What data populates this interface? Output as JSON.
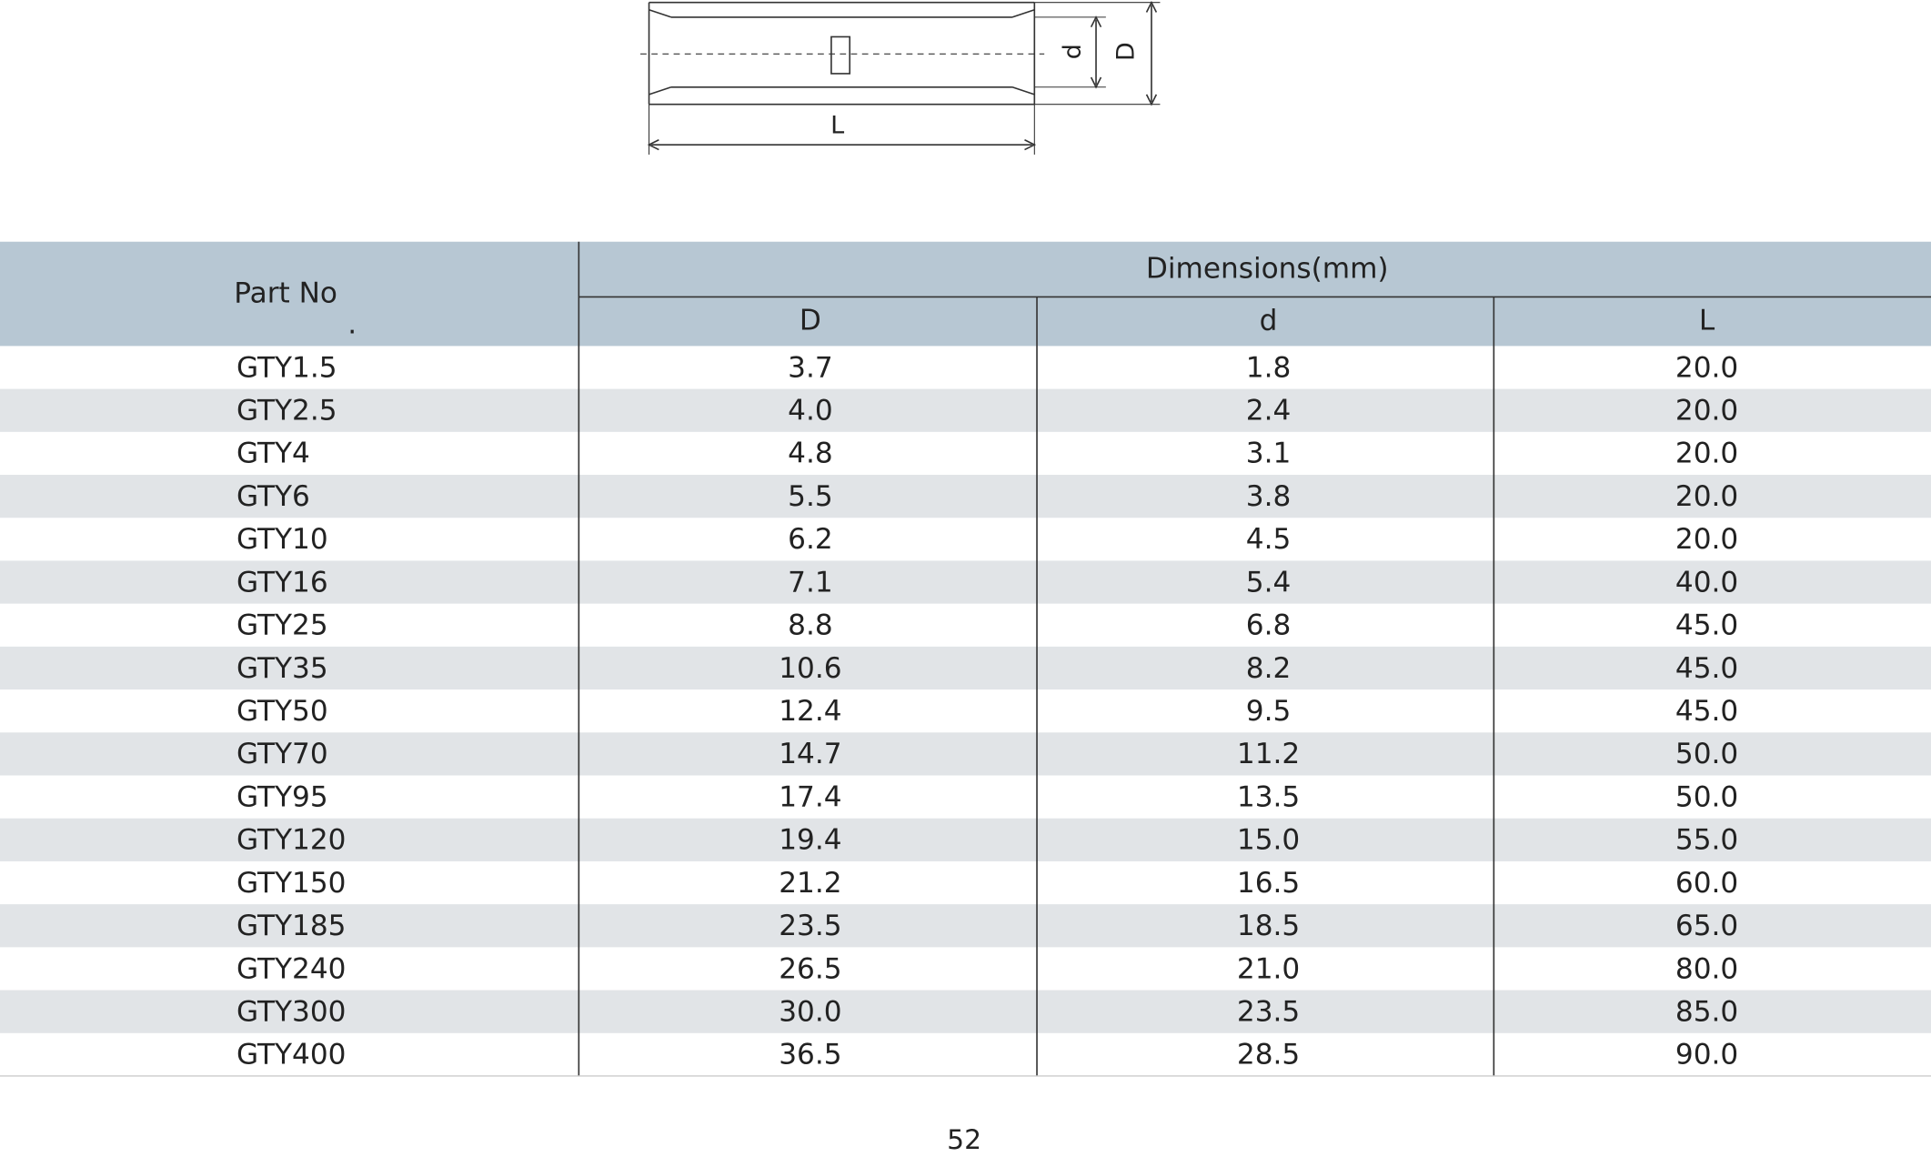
{
  "diagram": {
    "labels": {
      "inner": "d",
      "outer": "D",
      "length": "L"
    }
  },
  "table": {
    "header": {
      "part": "Part No",
      "part_mark": ".",
      "group": "Dimensions(mm)",
      "columns": [
        "D",
        "d",
        "L"
      ]
    },
    "rows": [
      [
        "GTY1.5",
        "3.7",
        "1.8",
        "20.0"
      ],
      [
        "GTY2.5",
        "4.0",
        "2.4",
        "20.0"
      ],
      [
        "GTY4",
        "4.8",
        "3.1",
        "20.0"
      ],
      [
        "GTY6",
        "5.5",
        "3.8",
        "20.0"
      ],
      [
        "GTY10",
        "6.2",
        "4.5",
        "20.0"
      ],
      [
        "GTY16",
        "7.1",
        "5.4",
        "40.0"
      ],
      [
        "GTY25",
        "8.8",
        "6.8",
        "45.0"
      ],
      [
        "GTY35",
        "10.6",
        "8.2",
        "45.0"
      ],
      [
        "GTY50",
        "12.4",
        "9.5",
        "45.0"
      ],
      [
        "GTY70",
        "14.7",
        "11.2",
        "50.0"
      ],
      [
        "GTY95",
        "17.4",
        "13.5",
        "50.0"
      ],
      [
        "GTY120",
        "19.4",
        "15.0",
        "55.0"
      ],
      [
        "GTY150",
        "21.2",
        "16.5",
        "60.0"
      ],
      [
        "GTY185",
        "23.5",
        "18.5",
        "65.0"
      ],
      [
        "GTY240",
        "26.5",
        "21.0",
        "80.0"
      ],
      [
        "GTY300",
        "30.0",
        "23.5",
        "85.0"
      ],
      [
        "GTY400",
        "36.5",
        "28.5",
        "90.0"
      ]
    ]
  },
  "footer": {
    "page": "52"
  }
}
